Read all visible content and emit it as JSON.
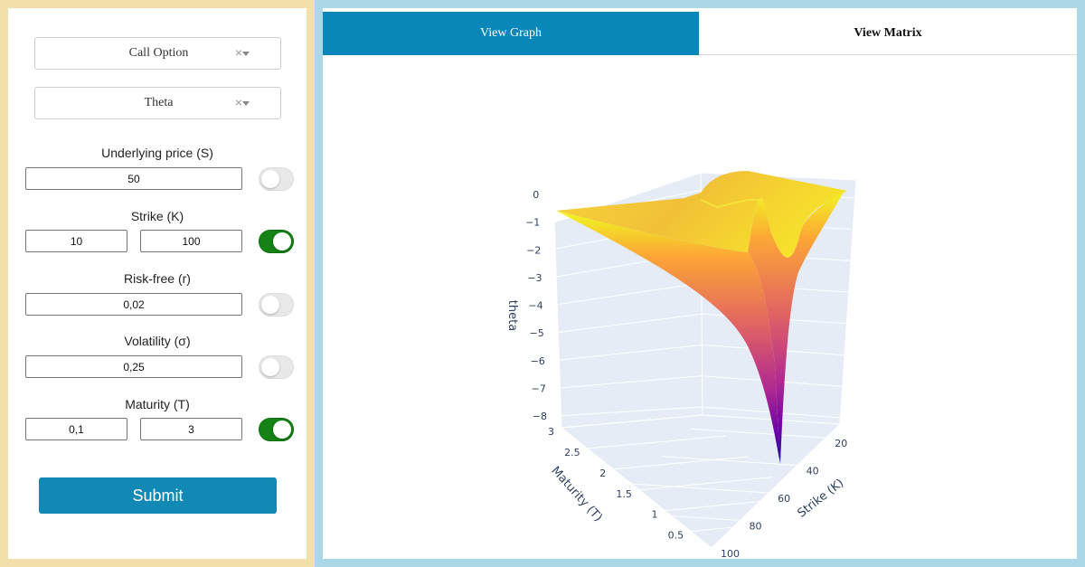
{
  "controls": {
    "option_type": {
      "value": "Call Option",
      "clear_symbol": "×"
    },
    "greek": {
      "value": "Theta",
      "clear_symbol": "×"
    },
    "underlying": {
      "label": "Underlying price (S)",
      "value": "50",
      "range_enabled": false
    },
    "strike": {
      "label": "Strike (K)",
      "min": "10",
      "max": "100",
      "range_enabled": true
    },
    "risk_free": {
      "label": "Risk-free (r)",
      "value": "0,02",
      "range_enabled": false
    },
    "volatility": {
      "label": "Volatility (σ)",
      "value": "0,25",
      "range_enabled": false
    },
    "maturity": {
      "label": "Maturity (T)",
      "min": "0,1",
      "max": "3",
      "range_enabled": true
    },
    "submit_label": "Submit"
  },
  "tabs": {
    "graph_label": "View Graph",
    "matrix_label": "View Matrix",
    "active": "graph"
  },
  "colors": {
    "panel_left_border": "#f3dfaa",
    "panel_right_border": "#acd7e6",
    "accent": "#0a87b9",
    "toggle_on": "#148214",
    "surface_low": "#0d0887",
    "surface_high": "#f0f921"
  },
  "chart_data": {
    "type": "surface",
    "xlabel": "Strike (K)",
    "ylabel": "Maturity (T)",
    "zlabel": "theta",
    "x_ticks": [
      "20",
      "40",
      "60",
      "80",
      "100"
    ],
    "y_ticks": [
      "0.5",
      "1",
      "1.5",
      "2",
      "2.5",
      "3"
    ],
    "z_ticks": [
      "0",
      "−1",
      "−2",
      "−3",
      "−4",
      "−5",
      "−6",
      "−7",
      "−8"
    ],
    "xlim": [
      10,
      100
    ],
    "ylim": [
      0.1,
      3
    ],
    "zlim": [
      -8,
      0.2
    ],
    "colorscale": "plasma",
    "approx_min": {
      "strike": 50,
      "maturity": 0.1,
      "theta": -8
    }
  }
}
